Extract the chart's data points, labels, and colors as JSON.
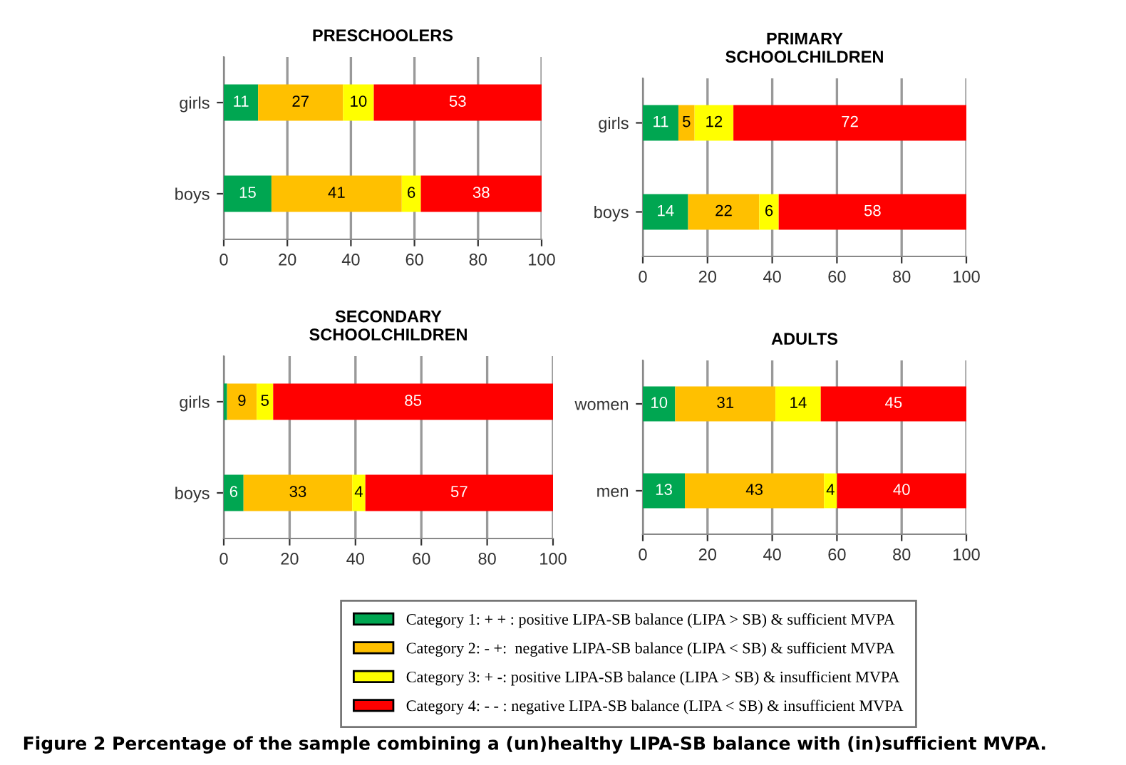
{
  "chart_data": [
    {
      "type": "bar",
      "orientation": "horizontal",
      "stacked": true,
      "title": "PRESCHOOLERS",
      "categories": [
        "girls",
        "boys"
      ],
      "xlim": [
        0,
        100
      ],
      "xticks": [
        0,
        20,
        40,
        60,
        80,
        100
      ],
      "grid": "x",
      "series": [
        {
          "color": "#00a651",
          "values": [
            10.8,
            15
          ],
          "value_labels": [
            "11",
            "15"
          ]
        },
        {
          "color": "#ffc000",
          "values": [
            26.7,
            41
          ],
          "value_labels": [
            "27",
            "41"
          ]
        },
        {
          "color": "#ffff00",
          "values": [
            9.7,
            6
          ],
          "value_labels": [
            "10",
            "6"
          ]
        },
        {
          "color": "#ff0000",
          "values": [
            52.8,
            38
          ],
          "value_labels": [
            "53",
            "38"
          ]
        }
      ]
    },
    {
      "type": "bar",
      "orientation": "horizontal",
      "stacked": true,
      "title": "PRIMARY\nSCHOOLCHILDREN",
      "categories": [
        "girls",
        "boys"
      ],
      "xlim": [
        0,
        100
      ],
      "xticks": [
        0,
        20,
        40,
        60,
        80,
        100
      ],
      "grid": "x",
      "data_labels": true,
      "series": [
        {
          "color": "#00a651",
          "values": [
            11,
            14
          ]
        },
        {
          "color": "#ffc000",
          "values": [
            5,
            22
          ]
        },
        {
          "color": "#ffff00",
          "values": [
            12,
            6
          ]
        },
        {
          "color": "#ff0000",
          "values": [
            72,
            58
          ]
        }
      ]
    },
    {
      "type": "bar",
      "orientation": "horizontal",
      "stacked": true,
      "title": "SECONDARY\nSCHOOLCHILDREN",
      "categories": [
        "girls",
        "boys"
      ],
      "xlim": [
        0,
        100
      ],
      "xticks": [
        0,
        20,
        40,
        60,
        80,
        100
      ],
      "grid": "x",
      "series": [
        {
          "color": "#00a651",
          "values": [
            1,
            6
          ],
          "value_labels": [
            null,
            "6"
          ]
        },
        {
          "color": "#ffc000",
          "values": [
            9,
            33
          ],
          "value_labels": [
            "9",
            "33"
          ]
        },
        {
          "color": "#ffff00",
          "values": [
            5,
            4
          ],
          "value_labels": [
            "5",
            "4"
          ]
        },
        {
          "color": "#ff0000",
          "values": [
            85,
            57
          ],
          "value_labels": [
            "85",
            "57"
          ]
        }
      ]
    },
    {
      "type": "bar",
      "orientation": "horizontal",
      "stacked": true,
      "title": "ADULTS",
      "categories": [
        "women",
        "men"
      ],
      "xlim": [
        0,
        100
      ],
      "xticks": [
        0,
        20,
        40,
        60,
        80,
        100
      ],
      "grid": "x",
      "data_labels": true,
      "legend": "bottom",
      "annotations": [
        "Figure 2 Percentage of the sample combining a (un)healthy LIPA-SB balance with (in)sufficient MVPA."
      ],
      "series": [
        {
          "name": "Category 1: + + : positive LIPA-SB balance (LIPA > SB) & sufficient MVPA",
          "color": "#00a651",
          "values": [
            10,
            13
          ]
        },
        {
          "name": "Category 2: - +:  negative LIPA-SB balance (LIPA < SB) & sufficient MVPA",
          "color": "#ffc000",
          "values": [
            31,
            43
          ]
        },
        {
          "name": "Category 3: + -: positive LIPA-SB balance (LIPA > SB) & insufficient MVPA",
          "color": "#ffff00",
          "values": [
            14,
            4
          ]
        },
        {
          "name": "Category 4: - - : negative LIPA-SB balance (LIPA < SB) & insufficient MVPA",
          "color": "#ff0000",
          "values": [
            45,
            40
          ]
        }
      ]
    }
  ]
}
